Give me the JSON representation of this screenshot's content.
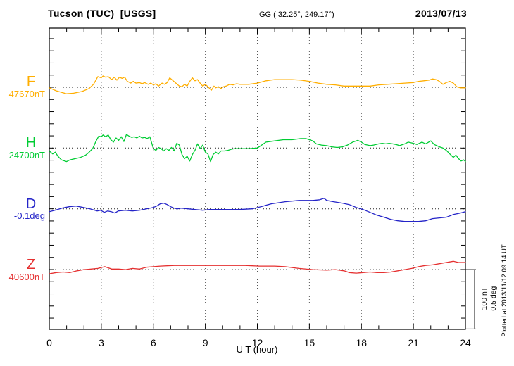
{
  "header": {
    "station": "Tucson (TUC)  [USGS]",
    "coords": "GG ( 32.25°, 249.17°)",
    "date": "2013/07/13"
  },
  "side": {
    "scale_nt": "100 nT",
    "scale_deg": "0.5 deg",
    "plotted_at": "Plotted at 2013/11/12 09:14 UT"
  },
  "axes": {
    "x_ticks": [
      0,
      3,
      6,
      9,
      12,
      15,
      18,
      21,
      24
    ]
  },
  "chart_data": {
    "type": "line",
    "title": "Tucson (TUC) [USGS] magnetogram for 2013/07/13",
    "xlabel": "U T (hour)",
    "x_range_hours": [
      0,
      24
    ],
    "x_gridlines_hours": [
      3,
      6,
      9,
      12,
      15,
      18,
      21
    ],
    "grid": "dotted vertical every 3 h, dotted horizontal baseline per trace",
    "scale": {
      "nT_per_division": 100,
      "deg_per_division": 0.5
    },
    "series": [
      {
        "name": "F",
        "unit": "nT",
        "reference": 47670,
        "reference_label": "47670nT",
        "color": "#FFAE00",
        "points": [
          [
            0,
            -1
          ],
          [
            0.4,
            -6
          ],
          [
            1.0,
            -11
          ],
          [
            1.4,
            -10
          ],
          [
            1.9,
            -7
          ],
          [
            2.3,
            -2
          ],
          [
            2.55,
            5
          ],
          [
            2.8,
            18
          ],
          [
            3.0,
            16
          ],
          [
            3.1,
            19
          ],
          [
            3.25,
            17
          ],
          [
            3.4,
            18
          ],
          [
            3.6,
            13
          ],
          [
            3.75,
            17
          ],
          [
            3.9,
            12
          ],
          [
            4.05,
            17
          ],
          [
            4.2,
            15
          ],
          [
            4.35,
            17
          ],
          [
            4.5,
            10
          ],
          [
            4.7,
            7
          ],
          [
            4.85,
            10
          ],
          [
            5.0,
            7
          ],
          [
            5.2,
            8
          ],
          [
            5.35,
            6
          ],
          [
            5.5,
            8
          ],
          [
            5.7,
            5
          ],
          [
            5.85,
            7
          ],
          [
            6.0,
            4
          ],
          [
            6.15,
            6
          ],
          [
            6.3,
            2
          ],
          [
            6.5,
            7
          ],
          [
            6.65,
            5
          ],
          [
            6.8,
            8
          ],
          [
            6.95,
            16
          ],
          [
            7.1,
            12
          ],
          [
            7.3,
            7
          ],
          [
            7.5,
            2
          ],
          [
            7.65,
            1
          ],
          [
            7.8,
            5
          ],
          [
            7.95,
            2
          ],
          [
            8.1,
            10
          ],
          [
            8.25,
            16
          ],
          [
            8.4,
            11
          ],
          [
            8.55,
            13
          ],
          [
            8.7,
            7
          ],
          [
            8.85,
            2
          ],
          [
            9.0,
            5
          ],
          [
            9.15,
            1
          ],
          [
            9.35,
            -5
          ],
          [
            9.5,
            2
          ],
          [
            9.6,
            -1
          ],
          [
            9.75,
            1
          ],
          [
            9.9,
            -2
          ],
          [
            10.05,
            1
          ],
          [
            10.2,
            2
          ],
          [
            10.4,
            5
          ],
          [
            10.6,
            4
          ],
          [
            10.8,
            6
          ],
          [
            11.0,
            5
          ],
          [
            11.5,
            5
          ],
          [
            12.0,
            7
          ],
          [
            12.5,
            11
          ],
          [
            13.0,
            13
          ],
          [
            13.5,
            13
          ],
          [
            14.0,
            13
          ],
          [
            14.5,
            12
          ],
          [
            15.0,
            10
          ],
          [
            15.5,
            7
          ],
          [
            16.0,
            5
          ],
          [
            16.5,
            4
          ],
          [
            17.0,
            2
          ],
          [
            17.5,
            2
          ],
          [
            18.0,
            2
          ],
          [
            18.5,
            2
          ],
          [
            19.0,
            4
          ],
          [
            19.5,
            5
          ],
          [
            20.0,
            6
          ],
          [
            20.5,
            7
          ],
          [
            21.0,
            8
          ],
          [
            21.3,
            10
          ],
          [
            21.6,
            11
          ],
          [
            21.9,
            12
          ],
          [
            22.1,
            14
          ],
          [
            22.3,
            13
          ],
          [
            22.5,
            10
          ],
          [
            22.7,
            5
          ],
          [
            22.9,
            8
          ],
          [
            23.1,
            10
          ],
          [
            23.3,
            7
          ],
          [
            23.5,
            1
          ],
          [
            23.7,
            -1
          ],
          [
            24,
            -1
          ]
        ]
      },
      {
        "name": "H",
        "unit": "nT",
        "reference": 24700,
        "reference_label": "24700nT",
        "color": "#00CC33",
        "points": [
          [
            0,
            -5
          ],
          [
            0.2,
            -10
          ],
          [
            0.35,
            -7
          ],
          [
            0.5,
            -14
          ],
          [
            0.7,
            -20
          ],
          [
            1.0,
            -23
          ],
          [
            1.2,
            -20
          ],
          [
            1.5,
            -18
          ],
          [
            1.8,
            -16
          ],
          [
            2.1,
            -12
          ],
          [
            2.3,
            -7
          ],
          [
            2.5,
            -1
          ],
          [
            2.7,
            12
          ],
          [
            2.85,
            20
          ],
          [
            3.0,
            19
          ],
          [
            3.1,
            22
          ],
          [
            3.25,
            19
          ],
          [
            3.4,
            22
          ],
          [
            3.55,
            14
          ],
          [
            3.7,
            10
          ],
          [
            3.85,
            17
          ],
          [
            4.0,
            13
          ],
          [
            4.15,
            19
          ],
          [
            4.3,
            11
          ],
          [
            4.45,
            23
          ],
          [
            4.6,
            20
          ],
          [
            4.75,
            18
          ],
          [
            4.9,
            19
          ],
          [
            5.05,
            17
          ],
          [
            5.2,
            20
          ],
          [
            5.35,
            17
          ],
          [
            5.5,
            18
          ],
          [
            5.65,
            16
          ],
          [
            5.8,
            19
          ],
          [
            6.0,
            -1
          ],
          [
            6.15,
            -4
          ],
          [
            6.3,
            1
          ],
          [
            6.45,
            -1
          ],
          [
            6.6,
            -5
          ],
          [
            6.75,
            -1
          ],
          [
            6.9,
            -4
          ],
          [
            7.05,
            1
          ],
          [
            7.2,
            -5
          ],
          [
            7.35,
            8
          ],
          [
            7.5,
            5
          ],
          [
            7.65,
            -11
          ],
          [
            7.8,
            -18
          ],
          [
            7.95,
            -14
          ],
          [
            8.1,
            -22
          ],
          [
            8.25,
            -11
          ],
          [
            8.4,
            -4
          ],
          [
            8.55,
            7
          ],
          [
            8.7,
            -1
          ],
          [
            8.85,
            5
          ],
          [
            9.0,
            -7
          ],
          [
            9.15,
            -10
          ],
          [
            9.3,
            -23
          ],
          [
            9.45,
            -11
          ],
          [
            9.6,
            -7
          ],
          [
            9.75,
            -10
          ],
          [
            9.9,
            -5
          ],
          [
            10.1,
            -5
          ],
          [
            10.3,
            -4
          ],
          [
            10.5,
            -2
          ],
          [
            10.7,
            -1
          ],
          [
            11.0,
            -1
          ],
          [
            11.5,
            -1
          ],
          [
            12.0,
            0
          ],
          [
            12.5,
            10
          ],
          [
            13.0,
            12
          ],
          [
            13.5,
            14
          ],
          [
            14.0,
            14
          ],
          [
            14.5,
            16
          ],
          [
            14.8,
            16
          ],
          [
            15.0,
            14
          ],
          [
            15.2,
            12
          ],
          [
            15.4,
            7
          ],
          [
            15.7,
            5
          ],
          [
            16.0,
            4
          ],
          [
            16.3,
            2
          ],
          [
            16.6,
            1
          ],
          [
            16.9,
            2
          ],
          [
            17.2,
            5
          ],
          [
            17.5,
            10
          ],
          [
            17.8,
            13
          ],
          [
            18.0,
            10
          ],
          [
            18.2,
            6
          ],
          [
            18.5,
            4
          ],
          [
            18.7,
            5
          ],
          [
            19.0,
            7
          ],
          [
            19.2,
            8
          ],
          [
            19.4,
            7
          ],
          [
            19.6,
            8
          ],
          [
            19.8,
            7
          ],
          [
            20.0,
            6
          ],
          [
            20.2,
            4
          ],
          [
            20.5,
            7
          ],
          [
            20.7,
            10
          ],
          [
            21.0,
            8
          ],
          [
            21.2,
            6
          ],
          [
            21.5,
            10
          ],
          [
            21.7,
            7
          ],
          [
            22.0,
            12
          ],
          [
            22.2,
            6
          ],
          [
            22.5,
            2
          ],
          [
            22.7,
            0
          ],
          [
            22.9,
            -4
          ],
          [
            23.1,
            -10
          ],
          [
            23.3,
            -16
          ],
          [
            23.45,
            -12
          ],
          [
            23.6,
            -18
          ],
          [
            23.75,
            -22
          ],
          [
            23.9,
            -20
          ],
          [
            24,
            -23
          ]
        ]
      },
      {
        "name": "D",
        "unit": "deg",
        "reference": -0.1,
        "reference_label": "-0.1deg",
        "color": "#2424C8",
        "points": [
          [
            0,
            -0.024
          ],
          [
            0.32,
            -0.012
          ],
          [
            0.73,
            0.006
          ],
          [
            1.14,
            0.018
          ],
          [
            1.54,
            0.024
          ],
          [
            1.95,
            0.012
          ],
          [
            2.35,
            0
          ],
          [
            2.76,
            -0.018
          ],
          [
            2.96,
            -0.012
          ],
          [
            3.17,
            -0.03
          ],
          [
            3.37,
            -0.018
          ],
          [
            3.57,
            -0.024
          ],
          [
            3.78,
            -0.036
          ],
          [
            3.98,
            -0.018
          ],
          [
            4.38,
            -0.012
          ],
          [
            4.79,
            -0.018
          ],
          [
            5.2,
            -0.012
          ],
          [
            5.6,
            0
          ],
          [
            6.0,
            0.012
          ],
          [
            6.2,
            0.024
          ],
          [
            6.4,
            0.042
          ],
          [
            6.6,
            0.048
          ],
          [
            6.8,
            0.036
          ],
          [
            7.0,
            0.018
          ],
          [
            7.2,
            0.006
          ],
          [
            7.4,
            0
          ],
          [
            7.6,
            0.006
          ],
          [
            8.0,
            0
          ],
          [
            8.4,
            -0.006
          ],
          [
            8.85,
            -0.012
          ],
          [
            9.26,
            -0.006
          ],
          [
            10.0,
            -0.006
          ],
          [
            10.9,
            -0.006
          ],
          [
            11.7,
            0
          ],
          [
            12.2,
            0.018
          ],
          [
            12.8,
            0.042
          ],
          [
            13.6,
            0.06
          ],
          [
            14.4,
            0.071
          ],
          [
            15.2,
            0.071
          ],
          [
            15.6,
            0.077
          ],
          [
            15.85,
            0.089
          ],
          [
            16.0,
            0.071
          ],
          [
            16.4,
            0.06
          ],
          [
            16.9,
            0.048
          ],
          [
            17.3,
            0.036
          ],
          [
            17.7,
            0.012
          ],
          [
            18.1,
            -0.006
          ],
          [
            18.5,
            -0.03
          ],
          [
            18.9,
            -0.054
          ],
          [
            19.3,
            -0.071
          ],
          [
            19.7,
            -0.089
          ],
          [
            20.1,
            -0.101
          ],
          [
            20.5,
            -0.107
          ],
          [
            20.9,
            -0.107
          ],
          [
            21.3,
            -0.107
          ],
          [
            21.7,
            -0.101
          ],
          [
            22.1,
            -0.083
          ],
          [
            22.5,
            -0.077
          ],
          [
            22.9,
            -0.071
          ],
          [
            23.3,
            -0.048
          ],
          [
            23.7,
            -0.036
          ],
          [
            24,
            -0.024
          ]
        ]
      },
      {
        "name": "Z",
        "unit": "nT",
        "reference": 40600,
        "reference_label": "40600nT",
        "color": "#E53030",
        "points": [
          [
            0,
            -7
          ],
          [
            0.4,
            -5
          ],
          [
            0.8,
            -4
          ],
          [
            1.2,
            -5
          ],
          [
            1.6,
            -2
          ],
          [
            2.0,
            0
          ],
          [
            2.4,
            1
          ],
          [
            2.8,
            2
          ],
          [
            3.2,
            5
          ],
          [
            3.6,
            1
          ],
          [
            4.0,
            1
          ],
          [
            4.4,
            0
          ],
          [
            4.8,
            2
          ],
          [
            5.2,
            1
          ],
          [
            5.6,
            4
          ],
          [
            6.0,
            5
          ],
          [
            6.4,
            6
          ],
          [
            7.2,
            7
          ],
          [
            8.0,
            7
          ],
          [
            8.9,
            7
          ],
          [
            9.7,
            7
          ],
          [
            10.5,
            7
          ],
          [
            11.3,
            7
          ],
          [
            12.1,
            6
          ],
          [
            13.0,
            6
          ],
          [
            13.6,
            5
          ],
          [
            14.4,
            2
          ],
          [
            15.2,
            0
          ],
          [
            16.0,
            -1
          ],
          [
            16.5,
            0
          ],
          [
            17.0,
            -2
          ],
          [
            17.3,
            -5
          ],
          [
            17.7,
            -6
          ],
          [
            18.1,
            -5
          ],
          [
            18.5,
            -4
          ],
          [
            18.9,
            -5
          ],
          [
            19.3,
            -5
          ],
          [
            19.7,
            -4
          ],
          [
            20.1,
            -2
          ],
          [
            20.5,
            0
          ],
          [
            20.9,
            2
          ],
          [
            21.3,
            5
          ],
          [
            21.7,
            7
          ],
          [
            22.1,
            8
          ],
          [
            22.5,
            10
          ],
          [
            22.9,
            12
          ],
          [
            23.3,
            14
          ],
          [
            23.6,
            12
          ],
          [
            24,
            12
          ]
        ]
      }
    ]
  }
}
